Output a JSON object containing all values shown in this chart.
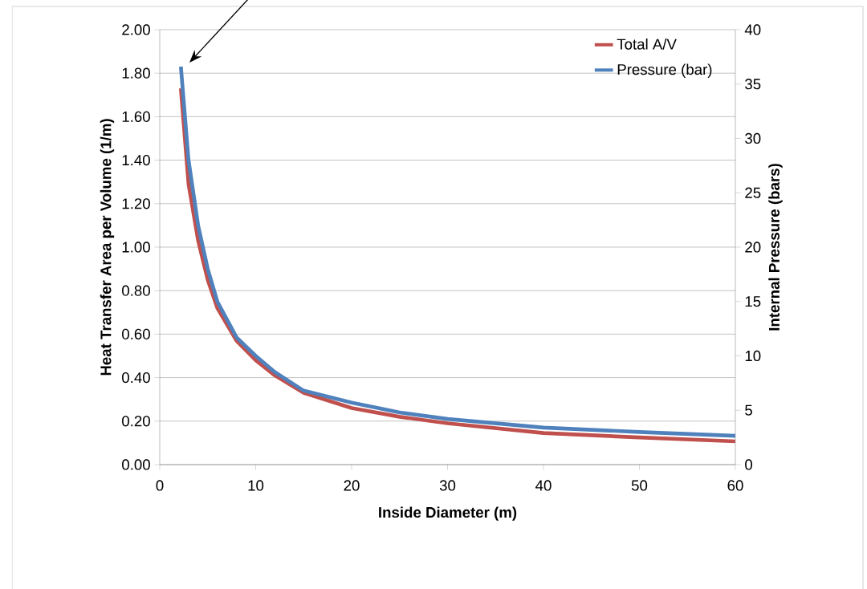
{
  "chart_data": {
    "type": "line",
    "xlabel": "Inside Diameter (m)",
    "ylabel": "Heat Transfer  Area per Volume (1/m)",
    "y2label": "Internal Pressure (bars)",
    "x": [
      2.2,
      3,
      4,
      5,
      6,
      8,
      10,
      12,
      15,
      20,
      25,
      30,
      40,
      50,
      60
    ],
    "series": [
      {
        "name": "Total A/V",
        "color": "#c0504d",
        "values": [
          1.73,
          1.29,
          1.03,
          0.85,
          0.72,
          0.57,
          0.48,
          0.41,
          0.33,
          0.26,
          0.22,
          0.19,
          0.145,
          0.125,
          0.107
        ]
      },
      {
        "name": "Pressure (bar)",
        "color": "#4f81bd",
        "axis": "y2",
        "values": [
          36.6,
          28,
          22,
          18,
          15,
          11.7,
          10,
          8.5,
          6.8,
          5.7,
          4.8,
          4.2,
          3.4,
          3.0,
          2.65
        ]
      }
    ],
    "xlim": [
      0,
      60
    ],
    "xticks": [
      0,
      10,
      20,
      30,
      40,
      50,
      60
    ],
    "ylim": [
      0,
      2
    ],
    "yticks": [
      {
        "value": 0,
        "label": "0.00"
      },
      {
        "value": 0.2,
        "label": "0.20"
      },
      {
        "value": 0.4,
        "label": "0.40"
      },
      {
        "value": 0.6,
        "label": "0.60"
      },
      {
        "value": 0.8,
        "label": "0.80"
      },
      {
        "value": 1,
        "label": "1.00"
      },
      {
        "value": 1.2,
        "label": "1.20"
      },
      {
        "value": 1.4,
        "label": "1.40"
      },
      {
        "value": 1.6,
        "label": "1.60"
      },
      {
        "value": 1.8,
        "label": "1.80"
      },
      {
        "value": 2,
        "label": "2.00"
      }
    ],
    "y2lim": [
      0,
      40
    ],
    "y2ticks": [
      0,
      5,
      10,
      15,
      20,
      25,
      30,
      35,
      40
    ],
    "grid": "y",
    "legend": "top right"
  }
}
